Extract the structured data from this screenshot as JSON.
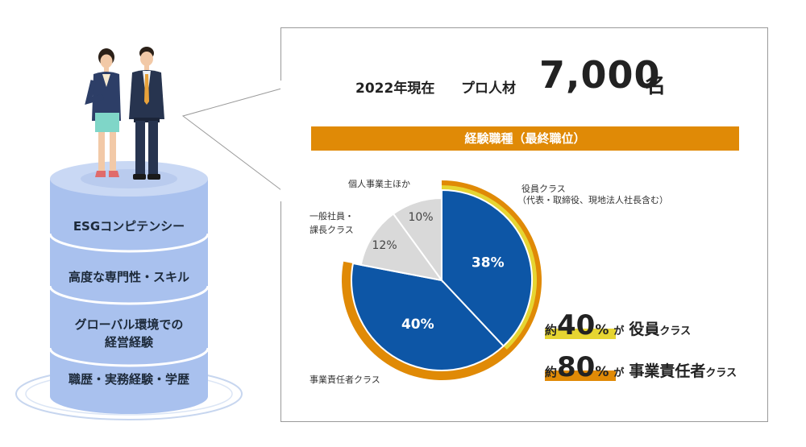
{
  "headline": {
    "year_label": "2022年現在",
    "talent_label": "プロ人材",
    "count": "7,000",
    "unit": "名"
  },
  "banner": {
    "title": "経験職種（最終職位）"
  },
  "stack_layers": [
    "ESGコンピテンシー",
    "高度な専門性・スキル",
    "グローバル環境での\n経営経験",
    "職歴・実務経験・学歴"
  ],
  "chart_data": {
    "type": "pie",
    "title": "経験職種（最終職位）",
    "categories": [
      "役員クラス",
      "事業責任者クラス",
      "一般社員・課長クラス",
      "個人事業主ほか"
    ],
    "values": [
      38,
      40,
      12,
      10
    ],
    "value_labels": [
      "38%",
      "40%",
      "12%",
      "10%"
    ],
    "colors": [
      "#0d56a6",
      "#0d56a6",
      "#d9d9d9",
      "#d9d9d9"
    ],
    "label_colors": [
      "#ffffff",
      "#ffffff",
      "#444444",
      "#444444"
    ],
    "outer_rings": [
      {
        "covers": [
          "役員クラス"
        ],
        "color": "#e6d532"
      },
      {
        "covers": [
          "役員クラス",
          "事業責任者クラス"
        ],
        "color": "#e08a06"
      }
    ],
    "annotations": {
      "executive": {
        "line1": "役員クラス",
        "line2": "（代表・取締役、現地法人社長含む）"
      },
      "business": "事業責任者クラス",
      "general": {
        "line1": "一般社員・",
        "line2": "課長クラス"
      },
      "individual": "個人事業主ほか"
    }
  },
  "stats": [
    {
      "prefix": "約",
      "value": "40",
      "unit": "%",
      "ga": "が",
      "cls_a": "役員",
      "cls_b": "クラス",
      "color": "#e6d532"
    },
    {
      "prefix": "約",
      "value": "80",
      "unit": "%",
      "ga": "が",
      "cls_a": "事業責任者",
      "cls_b": "クラス",
      "color": "#e08a06"
    }
  ]
}
